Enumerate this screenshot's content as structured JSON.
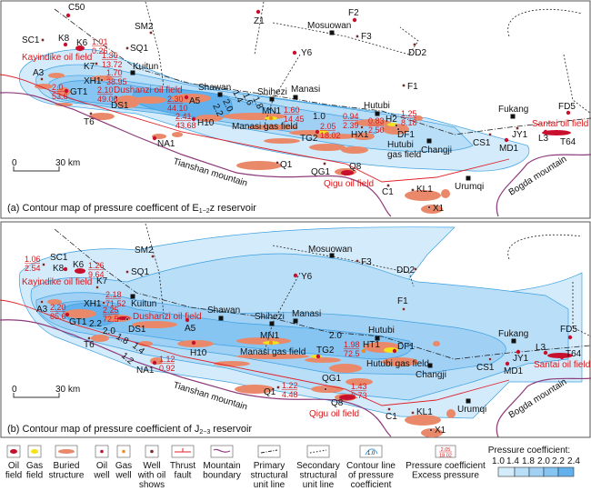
{
  "panel_a": {
    "caption": {
      "pre": "(a) Contour map of pressure coefficent of E",
      "sub": "1−2",
      "post": "z reservoir"
    },
    "scale": {
      "zero": "0",
      "distance": "30 km"
    },
    "wells": [
      {
        "name": "C50",
        "type": "oil"
      },
      {
        "name": "Z1",
        "type": "oil"
      },
      {
        "name": "SM2",
        "type": "show"
      },
      {
        "name": "SC1",
        "type": "show"
      },
      {
        "name": "K8",
        "type": "oil"
      },
      {
        "name": "K6",
        "type": "oil"
      },
      {
        "name": "SQ1",
        "type": "show"
      },
      {
        "name": "K7",
        "type": "show"
      },
      {
        "name": "A3",
        "type": "show"
      },
      {
        "name": "XH1",
        "type": "show"
      },
      {
        "name": "GT1",
        "type": "oil"
      },
      {
        "name": "DS1",
        "type": "show"
      },
      {
        "name": "A5",
        "type": "oil"
      },
      {
        "name": "H10",
        "type": "oil"
      },
      {
        "name": "T6",
        "type": "show"
      },
      {
        "name": "NA1",
        "type": "oil"
      },
      {
        "name": "Q1",
        "type": "show"
      },
      {
        "name": "MN1",
        "type": "gas"
      },
      {
        "name": "F2",
        "type": "oil"
      },
      {
        "name": "F3",
        "type": "show"
      },
      {
        "name": "Y6",
        "type": "oil"
      },
      {
        "name": "DD2",
        "type": "show"
      },
      {
        "name": "F1",
        "type": "show"
      },
      {
        "name": "HX1",
        "type": "show"
      },
      {
        "name": "H2",
        "type": "show"
      },
      {
        "name": "DF1",
        "type": "show"
      },
      {
        "name": "TG2",
        "type": "oil"
      },
      {
        "name": "FD5",
        "type": "oil"
      },
      {
        "name": "JY1",
        "type": "show"
      },
      {
        "name": "CS1",
        "type": "show"
      },
      {
        "name": "MD1",
        "type": "oil"
      },
      {
        "name": "L3",
        "type": "oil"
      },
      {
        "name": "T64",
        "type": "oil"
      },
      {
        "name": "QG1",
        "type": "show"
      },
      {
        "name": "Q8",
        "type": "oil"
      },
      {
        "name": "C1",
        "type": "show"
      },
      {
        "name": "KL1",
        "type": "show"
      },
      {
        "name": "X1",
        "type": "show"
      }
    ],
    "cities": [
      "Kuitun",
      "Shawan",
      "Shihezi",
      "Manasi",
      "Mosuowan",
      "Hutubi",
      "Changji",
      "Urumqi",
      "Fukang"
    ],
    "oil_fields": [
      "Kayindike oil field",
      "Dushanzi oil field",
      "Qigu oil field",
      "Santai oil field"
    ],
    "gas_fields": [
      "Manasi gas field",
      "Hutubi",
      "gas field"
    ],
    "pressure_labels": [
      {
        "coef": "1.01",
        "excess": "0.26"
      },
      {
        "coef": "1.36",
        "excess": "13.72"
      },
      {
        "coef": "1.70",
        "excess": "38.95"
      },
      {
        "coef": "2.0",
        "excess": "53.6"
      },
      {
        "coef": "2.10",
        "excess": "49.06"
      },
      {
        "coef": "2.30",
        "excess": "44.10"
      },
      {
        "coef": "2.41",
        "excess": "43.68"
      },
      {
        "coef": "1.60",
        "excess": "14.45"
      },
      {
        "coef": "2.05",
        "excess": "18.02"
      },
      {
        "coef": "0.94",
        "excess": "2.39"
      },
      {
        "coef": "0.83",
        "excess": "2.50"
      },
      {
        "coef": "1.25",
        "excess": "8.18"
      }
    ],
    "contour_labels": [
      "1.4",
      "1.6",
      "1.8",
      "2.0",
      "2.2",
      "1.0"
    ],
    "mountains": [
      "Tianshan mountain",
      "Bogda mountain"
    ]
  },
  "panel_b": {
    "caption": {
      "pre": "(b) Contour map of pressure coefficient of J",
      "sub": "2−3",
      "post": " reservoir"
    },
    "scale": {
      "zero": "0",
      "distance": "30 km"
    },
    "wells": [
      {
        "name": "SM2",
        "type": "show"
      },
      {
        "name": "SC1",
        "type": "show"
      },
      {
        "name": "K8",
        "type": "oil"
      },
      {
        "name": "K6",
        "type": "oil"
      },
      {
        "name": "SQ1",
        "type": "show"
      },
      {
        "name": "K7",
        "type": "show"
      },
      {
        "name": "XH1",
        "type": "show"
      },
      {
        "name": "A3",
        "type": "show"
      },
      {
        "name": "GT1",
        "type": "oil"
      },
      {
        "name": "DS1",
        "type": "show"
      },
      {
        "name": "A5",
        "type": "oil"
      },
      {
        "name": "T6",
        "type": "show"
      },
      {
        "name": "H10",
        "type": "oil"
      },
      {
        "name": "MN1",
        "type": "gas"
      },
      {
        "name": "NA1",
        "type": "oil"
      },
      {
        "name": "Q1",
        "type": "show"
      },
      {
        "name": "F3",
        "type": "show"
      },
      {
        "name": "Y6",
        "type": "oil"
      },
      {
        "name": "DD2",
        "type": "show"
      },
      {
        "name": "F1",
        "type": "show"
      },
      {
        "name": "HT1",
        "type": "gas"
      },
      {
        "name": "DF1",
        "type": "oil"
      },
      {
        "name": "TG2",
        "type": "oil"
      },
      {
        "name": "QG1",
        "type": "show"
      },
      {
        "name": "Q8",
        "type": "oil"
      },
      {
        "name": "C1",
        "type": "show"
      },
      {
        "name": "KL1",
        "type": "show"
      },
      {
        "name": "X1",
        "type": "show"
      },
      {
        "name": "FD5",
        "type": "oil"
      },
      {
        "name": "JY1",
        "type": "oil"
      },
      {
        "name": "CS1",
        "type": "show"
      },
      {
        "name": "MD1",
        "type": "oil"
      },
      {
        "name": "L3",
        "type": "oil"
      },
      {
        "name": "T64",
        "type": "oil"
      }
    ],
    "cities": [
      "Kuitun",
      "Shawan",
      "Shihezi",
      "Manasi",
      "Mosuowan",
      "Hutubi",
      "Changji",
      "Urumqi",
      "Fukang"
    ],
    "oil_fields": [
      "Kayindike oil field",
      "Dushanzi oil field",
      "Qigu oil field",
      "Santai oil field"
    ],
    "gas_fields": [
      "Manasi gas field",
      "Hutubi gas field"
    ],
    "pressure_labels": [
      {
        "coef": "1.06",
        "excess": "2.54"
      },
      {
        "coef": "1.26",
        "excess": "9.64"
      },
      {
        "coef": "2.18",
        "excess": "71.52"
      },
      {
        "coef": "2.20",
        "excess": "85.6"
      },
      {
        "coef": "2.25",
        "excess": "72.5"
      },
      {
        "coef": "1.12",
        "excess": "0.92"
      },
      {
        "coef": "1.22",
        "excess": "4.48"
      },
      {
        "coef": "1.98",
        "excess": "72.5"
      },
      {
        "coef": "1.43",
        "excess": "6.73"
      }
    ],
    "contour_labels": [
      "2.2",
      "2.0",
      "1.8",
      "1.4",
      "1.2",
      "2.0"
    ],
    "mountains": [
      "Tianshan mountain",
      "Bogda mountain"
    ]
  },
  "legend": {
    "items": [
      {
        "key": "oil-field",
        "lines": [
          "Oil",
          "field"
        ]
      },
      {
        "key": "gas-field",
        "lines": [
          "Gas",
          "field"
        ]
      },
      {
        "key": "buried-structure",
        "lines": [
          "Buried",
          "structure"
        ]
      },
      {
        "key": "oil-well",
        "lines": [
          "Oil",
          "well"
        ]
      },
      {
        "key": "gas-well",
        "lines": [
          "Gas",
          "well"
        ]
      },
      {
        "key": "well-with-oil-shows",
        "lines": [
          "Well",
          "with oil",
          "shows"
        ]
      },
      {
        "key": "thrust-fault",
        "lines": [
          "Thrust",
          "fault"
        ]
      },
      {
        "key": "mountain-boundary",
        "lines": [
          "Mountain",
          "boundary"
        ]
      },
      {
        "key": "primary-structural-unit-line",
        "lines": [
          "Primary",
          "structural",
          "unit line"
        ]
      },
      {
        "key": "secondary-structural-unit-line",
        "lines": [
          "Secondary",
          "structural",
          "unit line"
        ]
      },
      {
        "key": "contour-line",
        "lines": [
          "Contour line",
          "of pressure",
          "coefficient"
        ]
      },
      {
        "key": "pressure-label",
        "lines": [
          "Pressure coefficient",
          "Excess pressure"
        ]
      }
    ],
    "contour_icon_label": "1.0",
    "pressure_icon": {
      "coef": "2.05",
      "excess": "18.02"
    },
    "scale_title": "Pressure coefficient:",
    "scale_ticks": [
      "1.0",
      "1.4",
      "1.8",
      "2.0",
      "2.2",
      "2.4"
    ],
    "scale_colors": [
      "#d4ebfb",
      "#b9def8",
      "#a0d1f5",
      "#86c4f2",
      "#62b1ec"
    ]
  },
  "colors": {
    "oil": "#c8102e",
    "gas": "#f2e31b",
    "buried": "#e9896a",
    "mountain": "#8e3b7c",
    "thrust": "#e0202a",
    "contour": "#3da0e0"
  }
}
